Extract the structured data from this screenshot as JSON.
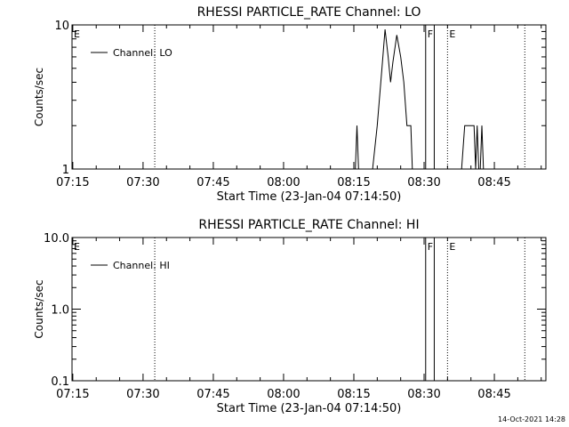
{
  "footer_stamp": "14-Oct-2021 14:28",
  "chart_data": [
    {
      "type": "line",
      "title": "RHESSI PARTICLE_RATE Channel: LO",
      "xlabel": "Start Time (23-Jan-04 07:14:50)",
      "ylabel": "Counts/sec",
      "y_scale": "log",
      "xlim": [
        "07:14:50",
        "08:56"
      ],
      "ylim": [
        1,
        10
      ],
      "x_ticks": [
        "07:15",
        "07:30",
        "07:45",
        "08:00",
        "08:15",
        "08:30",
        "08:45"
      ],
      "y_ticks": [
        "1",
        "10"
      ],
      "legend": {
        "placement": "top-left",
        "entries": [
          "Channel: LO"
        ]
      },
      "markers": [
        {
          "label": "E",
          "time": "07:14:50",
          "style": "dotted"
        },
        {
          "label": "",
          "time": "07:32:30",
          "style": "dotted"
        },
        {
          "label": "F",
          "time": "08:30:20",
          "style": "solid"
        },
        {
          "label": "",
          "time": "08:32:10",
          "style": "solid"
        },
        {
          "label": "E",
          "time": "08:35:00",
          "style": "dotted"
        },
        {
          "label": "",
          "time": "08:51:30",
          "style": "dotted"
        }
      ],
      "series": [
        {
          "name": "Channel: LO",
          "points": [
            [
              "08:15:20",
              1
            ],
            [
              "08:15:40",
              2
            ],
            [
              "08:16:00",
              1
            ],
            [
              "08:19:00",
              1
            ],
            [
              "08:20:00",
              2
            ],
            [
              "08:21:00",
              5
            ],
            [
              "08:21:40",
              9.3
            ],
            [
              "08:22:20",
              6
            ],
            [
              "08:22:50",
              4
            ],
            [
              "08:23:20",
              5.5
            ],
            [
              "08:24:10",
              8.5
            ],
            [
              "08:25:00",
              6
            ],
            [
              "08:25:40",
              4
            ],
            [
              "08:26:20",
              2
            ],
            [
              "08:26:50",
              2
            ],
            [
              "08:27:10",
              2
            ],
            [
              "08:27:30",
              1
            ],
            [
              "08:29:20",
              1
            ],
            [
              "08:30:00",
              1
            ],
            [
              "08:38:00",
              1
            ],
            [
              "08:38:40",
              2
            ],
            [
              "08:40:40",
              2
            ],
            [
              "08:41:00",
              1
            ],
            [
              "08:41:20",
              2
            ],
            [
              "08:41:40",
              1
            ],
            [
              "08:42:00",
              1
            ],
            [
              "08:42:20",
              2
            ],
            [
              "08:42:40",
              1
            ]
          ]
        }
      ]
    },
    {
      "type": "line",
      "title": "RHESSI PARTICLE_RATE Channel: HI",
      "xlabel": "Start Time (23-Jan-04 07:14:50)",
      "ylabel": "Counts/sec",
      "y_scale": "log",
      "xlim": [
        "07:14:50",
        "08:56"
      ],
      "ylim": [
        0.1,
        10
      ],
      "x_ticks": [
        "07:15",
        "07:30",
        "07:45",
        "08:00",
        "08:15",
        "08:30",
        "08:45"
      ],
      "y_ticks": [
        "0.1",
        "1.0",
        "10.0"
      ],
      "legend": {
        "placement": "top-left",
        "entries": [
          "Channel: HI"
        ]
      },
      "markers": [
        {
          "label": "E",
          "time": "07:14:50",
          "style": "dotted"
        },
        {
          "label": "",
          "time": "07:32:30",
          "style": "dotted"
        },
        {
          "label": "F",
          "time": "08:30:20",
          "style": "solid"
        },
        {
          "label": "",
          "time": "08:32:10",
          "style": "solid"
        },
        {
          "label": "E",
          "time": "08:35:00",
          "style": "dotted"
        },
        {
          "label": "",
          "time": "08:51:30",
          "style": "dotted"
        }
      ],
      "series": [
        {
          "name": "Channel: HI",
          "points": []
        }
      ]
    }
  ]
}
